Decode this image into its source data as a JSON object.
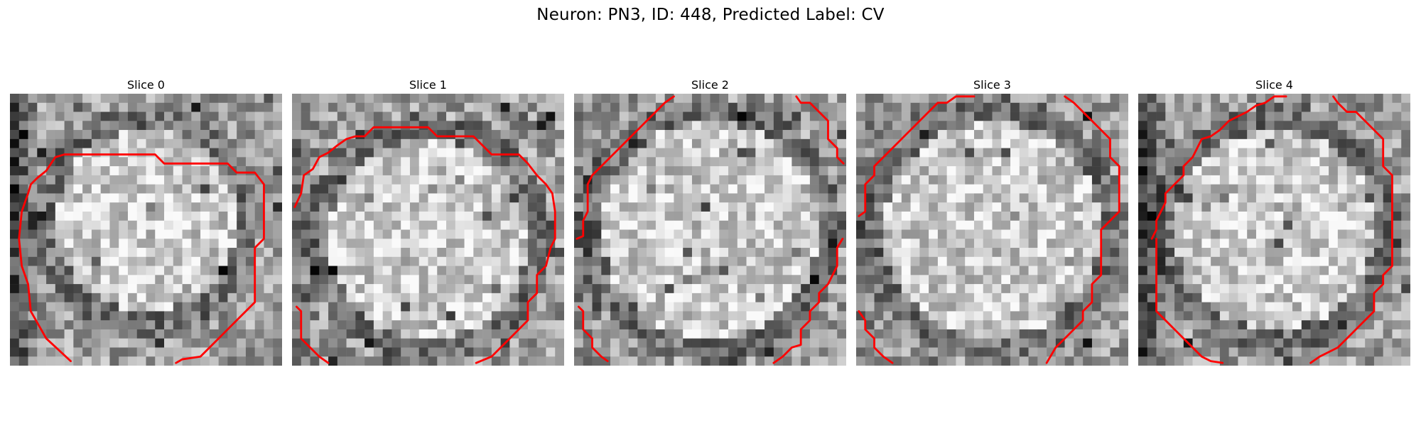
{
  "figure": {
    "title": "Neuron: PN3, ID: 448, Predicted Label: CV"
  },
  "panels": [
    {
      "title": "Slice 0"
    },
    {
      "title": "Slice 1"
    },
    {
      "title": "Slice 2"
    },
    {
      "title": "Slice 3"
    },
    {
      "title": "Slice 4"
    }
  ],
  "colors": {
    "contour": "#ff0000",
    "colormap": "grayscale",
    "background": "#ffffff"
  }
}
